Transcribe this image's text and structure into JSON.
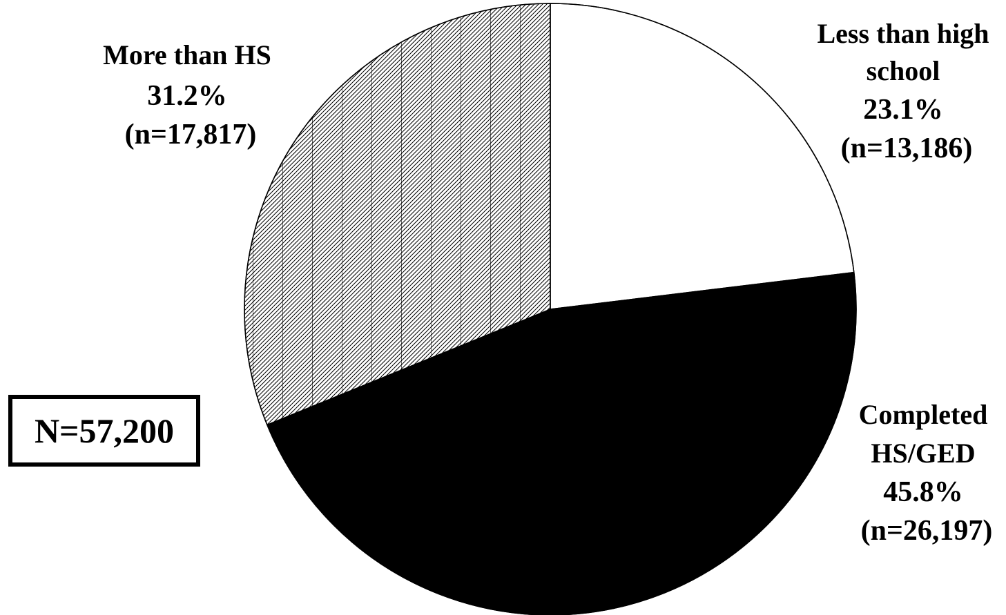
{
  "chart_data": {
    "type": "pie",
    "title": "",
    "total_label": "N=57,200",
    "slices": [
      {
        "name": "Less than high school",
        "label_lines": [
          "Less than high",
          "school",
          "23.1%",
          "(n=13,186)"
        ],
        "percent": 23.1,
        "n": 13186,
        "fill": "white"
      },
      {
        "name": "Completed HS/GED",
        "label_lines": [
          "Completed",
          "HS/GED",
          "45.8%",
          "(n=26,197)"
        ],
        "percent": 45.8,
        "n": 26197,
        "fill": "black"
      },
      {
        "name": "More than HS",
        "label_lines": [
          "More than HS",
          "31.2%",
          "(n=17,817)"
        ],
        "percent": 31.2,
        "n": 17817,
        "fill": "hatched"
      }
    ],
    "start_angle": "12 o'clock",
    "direction": "clockwise",
    "legend": "none"
  },
  "colors": {
    "white": "#ffffff",
    "black": "#000000",
    "hatch": "#000000",
    "outline": "#000000"
  }
}
